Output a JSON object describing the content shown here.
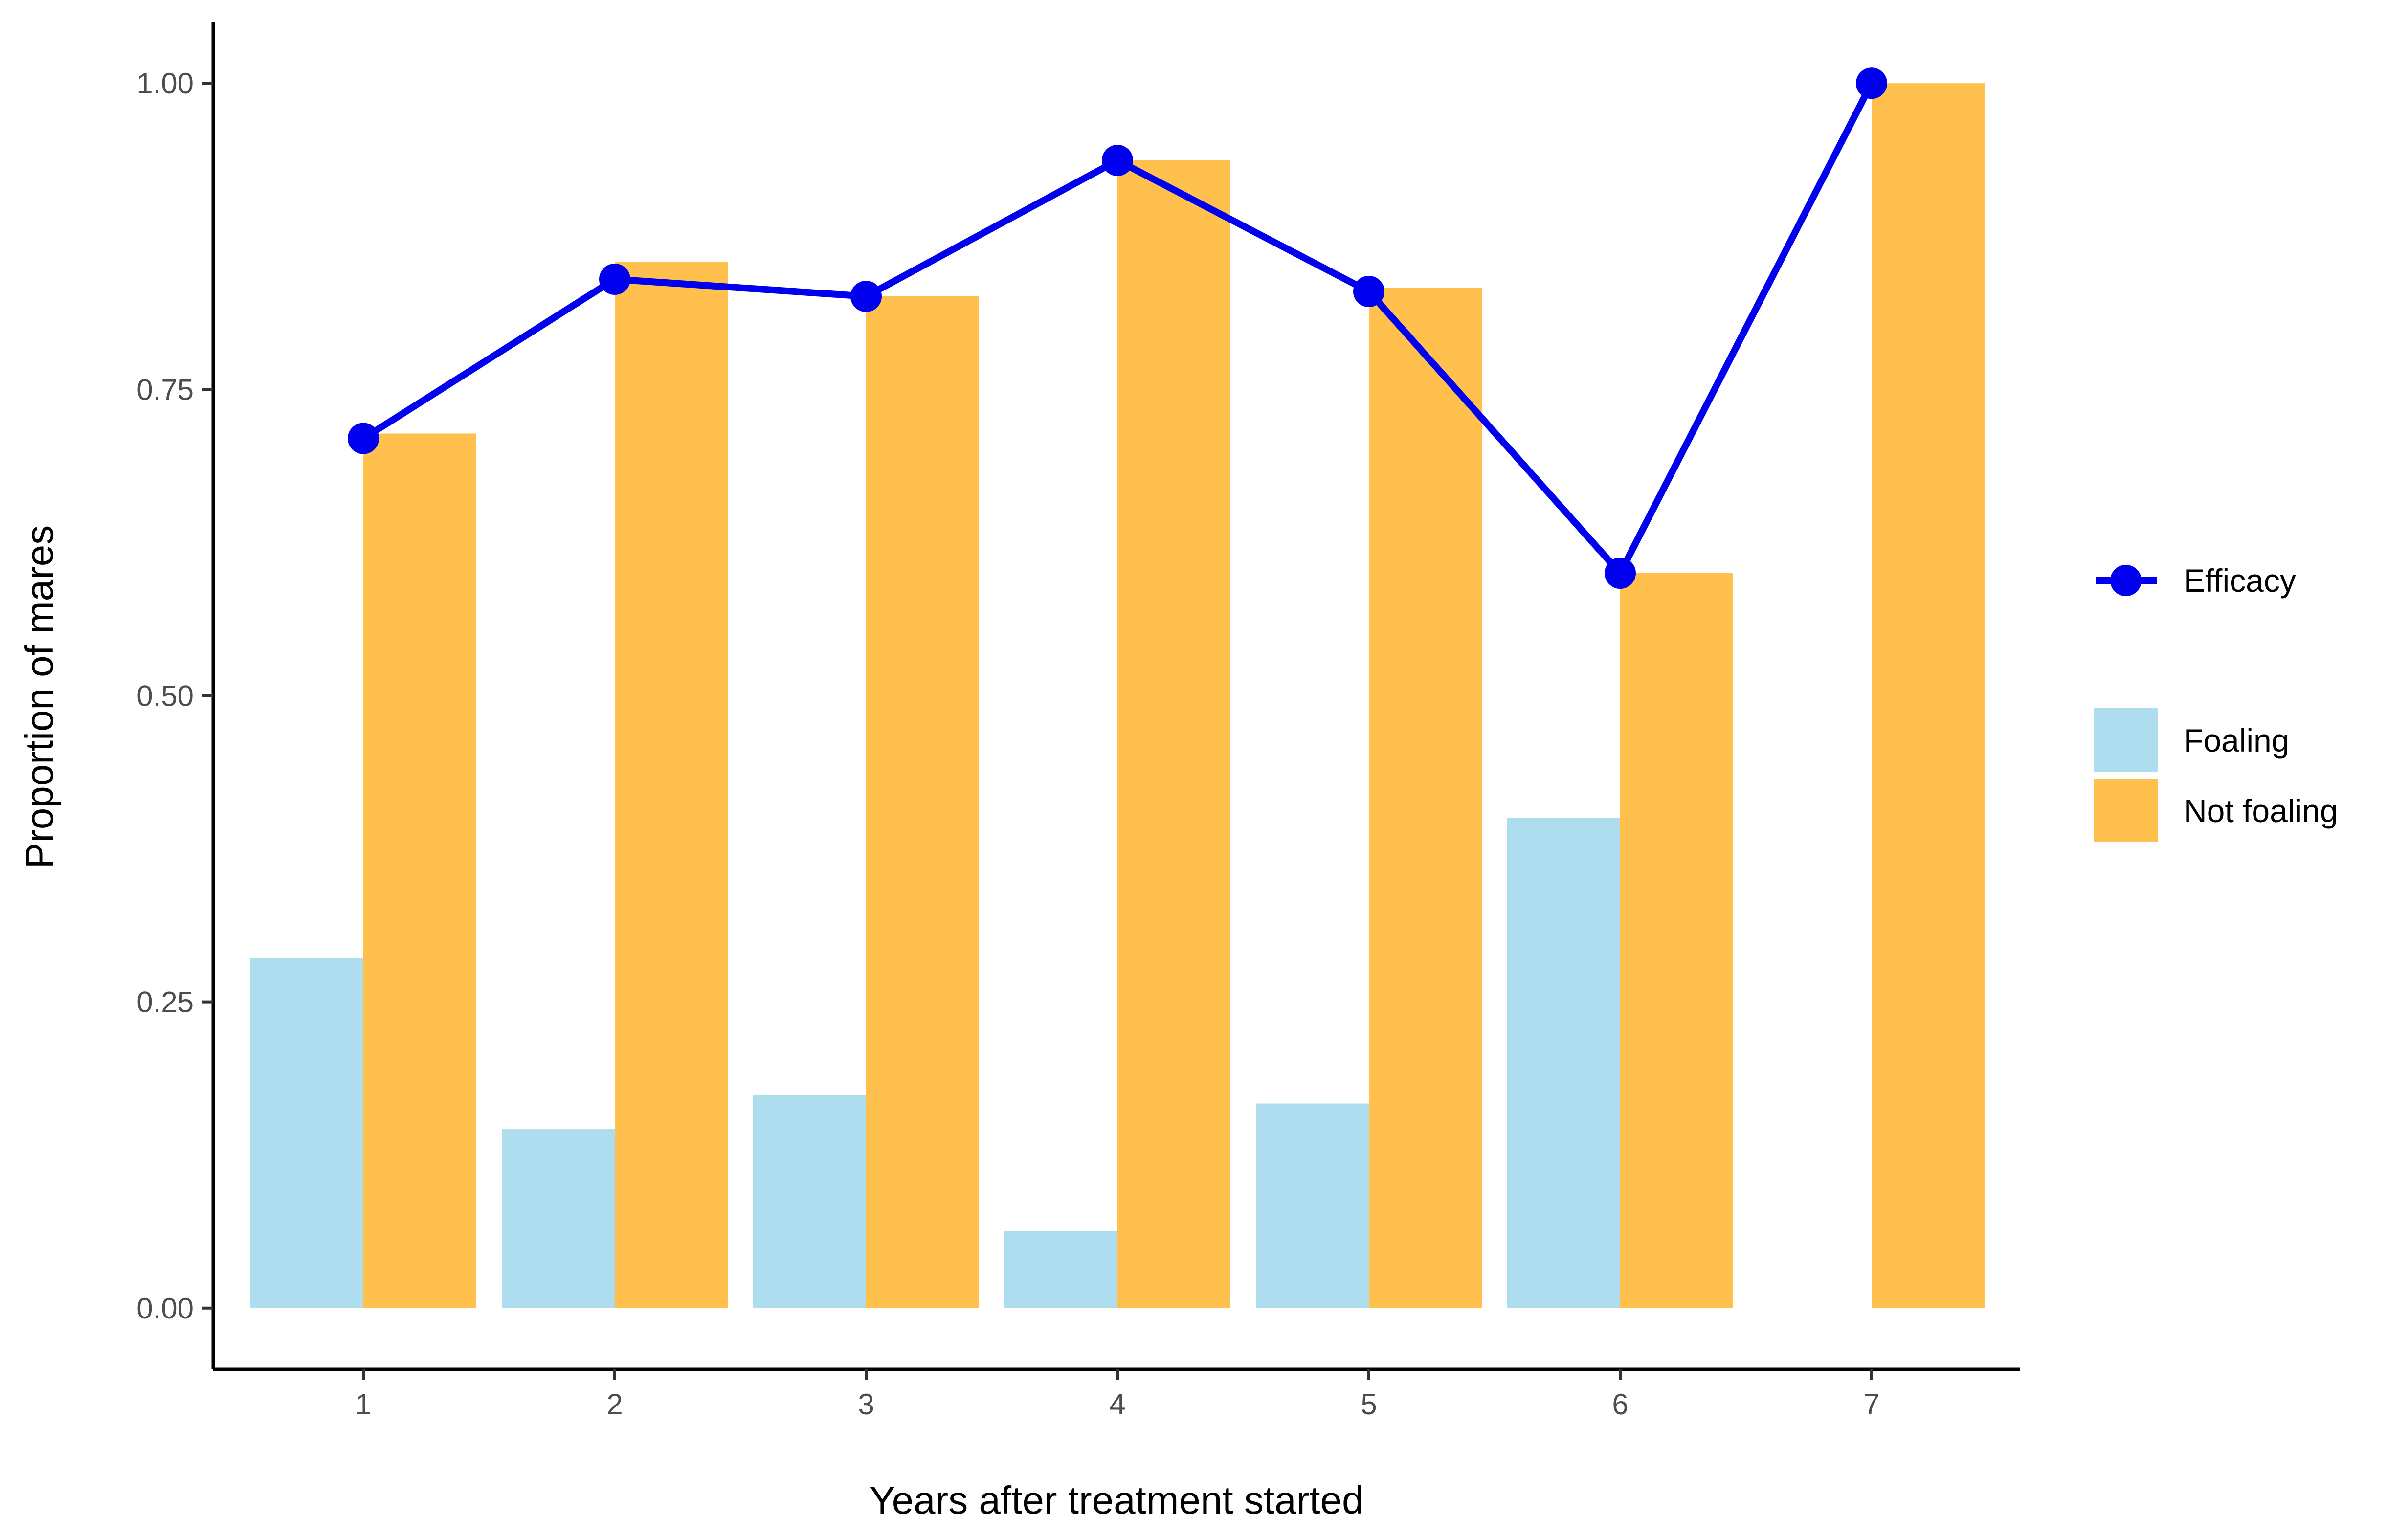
{
  "chart_data": {
    "type": "bar",
    "title": "",
    "xlabel": "Years after treatment started",
    "ylabel": "Proportion of mares",
    "categories": [
      "1",
      "2",
      "3",
      "4",
      "5",
      "6",
      "7"
    ],
    "ylim": [
      -0.05,
      1.05
    ],
    "yticks": [
      "0.00",
      "0.25",
      "0.50",
      "0.75",
      "1.00"
    ],
    "grid": false,
    "legend_position": "right",
    "series": [
      {
        "name": "Foaling",
        "type": "bar",
        "color": "#ADDDEF",
        "values": [
          0.286,
          0.146,
          0.174,
          0.063,
          0.167,
          0.4,
          0.0
        ]
      },
      {
        "name": "Not foaling",
        "type": "bar",
        "color": "#FFC04D",
        "values": [
          0.714,
          0.854,
          0.826,
          0.937,
          0.833,
          0.6,
          1.0
        ]
      },
      {
        "name": "Efficacy",
        "type": "line",
        "color": "#0000EE",
        "values": [
          0.71,
          0.84,
          0.826,
          0.937,
          0.83,
          0.6,
          1.0
        ]
      }
    ]
  },
  "legend": {
    "line_items": [
      {
        "label": "Efficacy",
        "icon": "line-marker-icon"
      }
    ],
    "fill_items": [
      {
        "label": "Foaling"
      },
      {
        "label": "Not foaling"
      }
    ]
  }
}
